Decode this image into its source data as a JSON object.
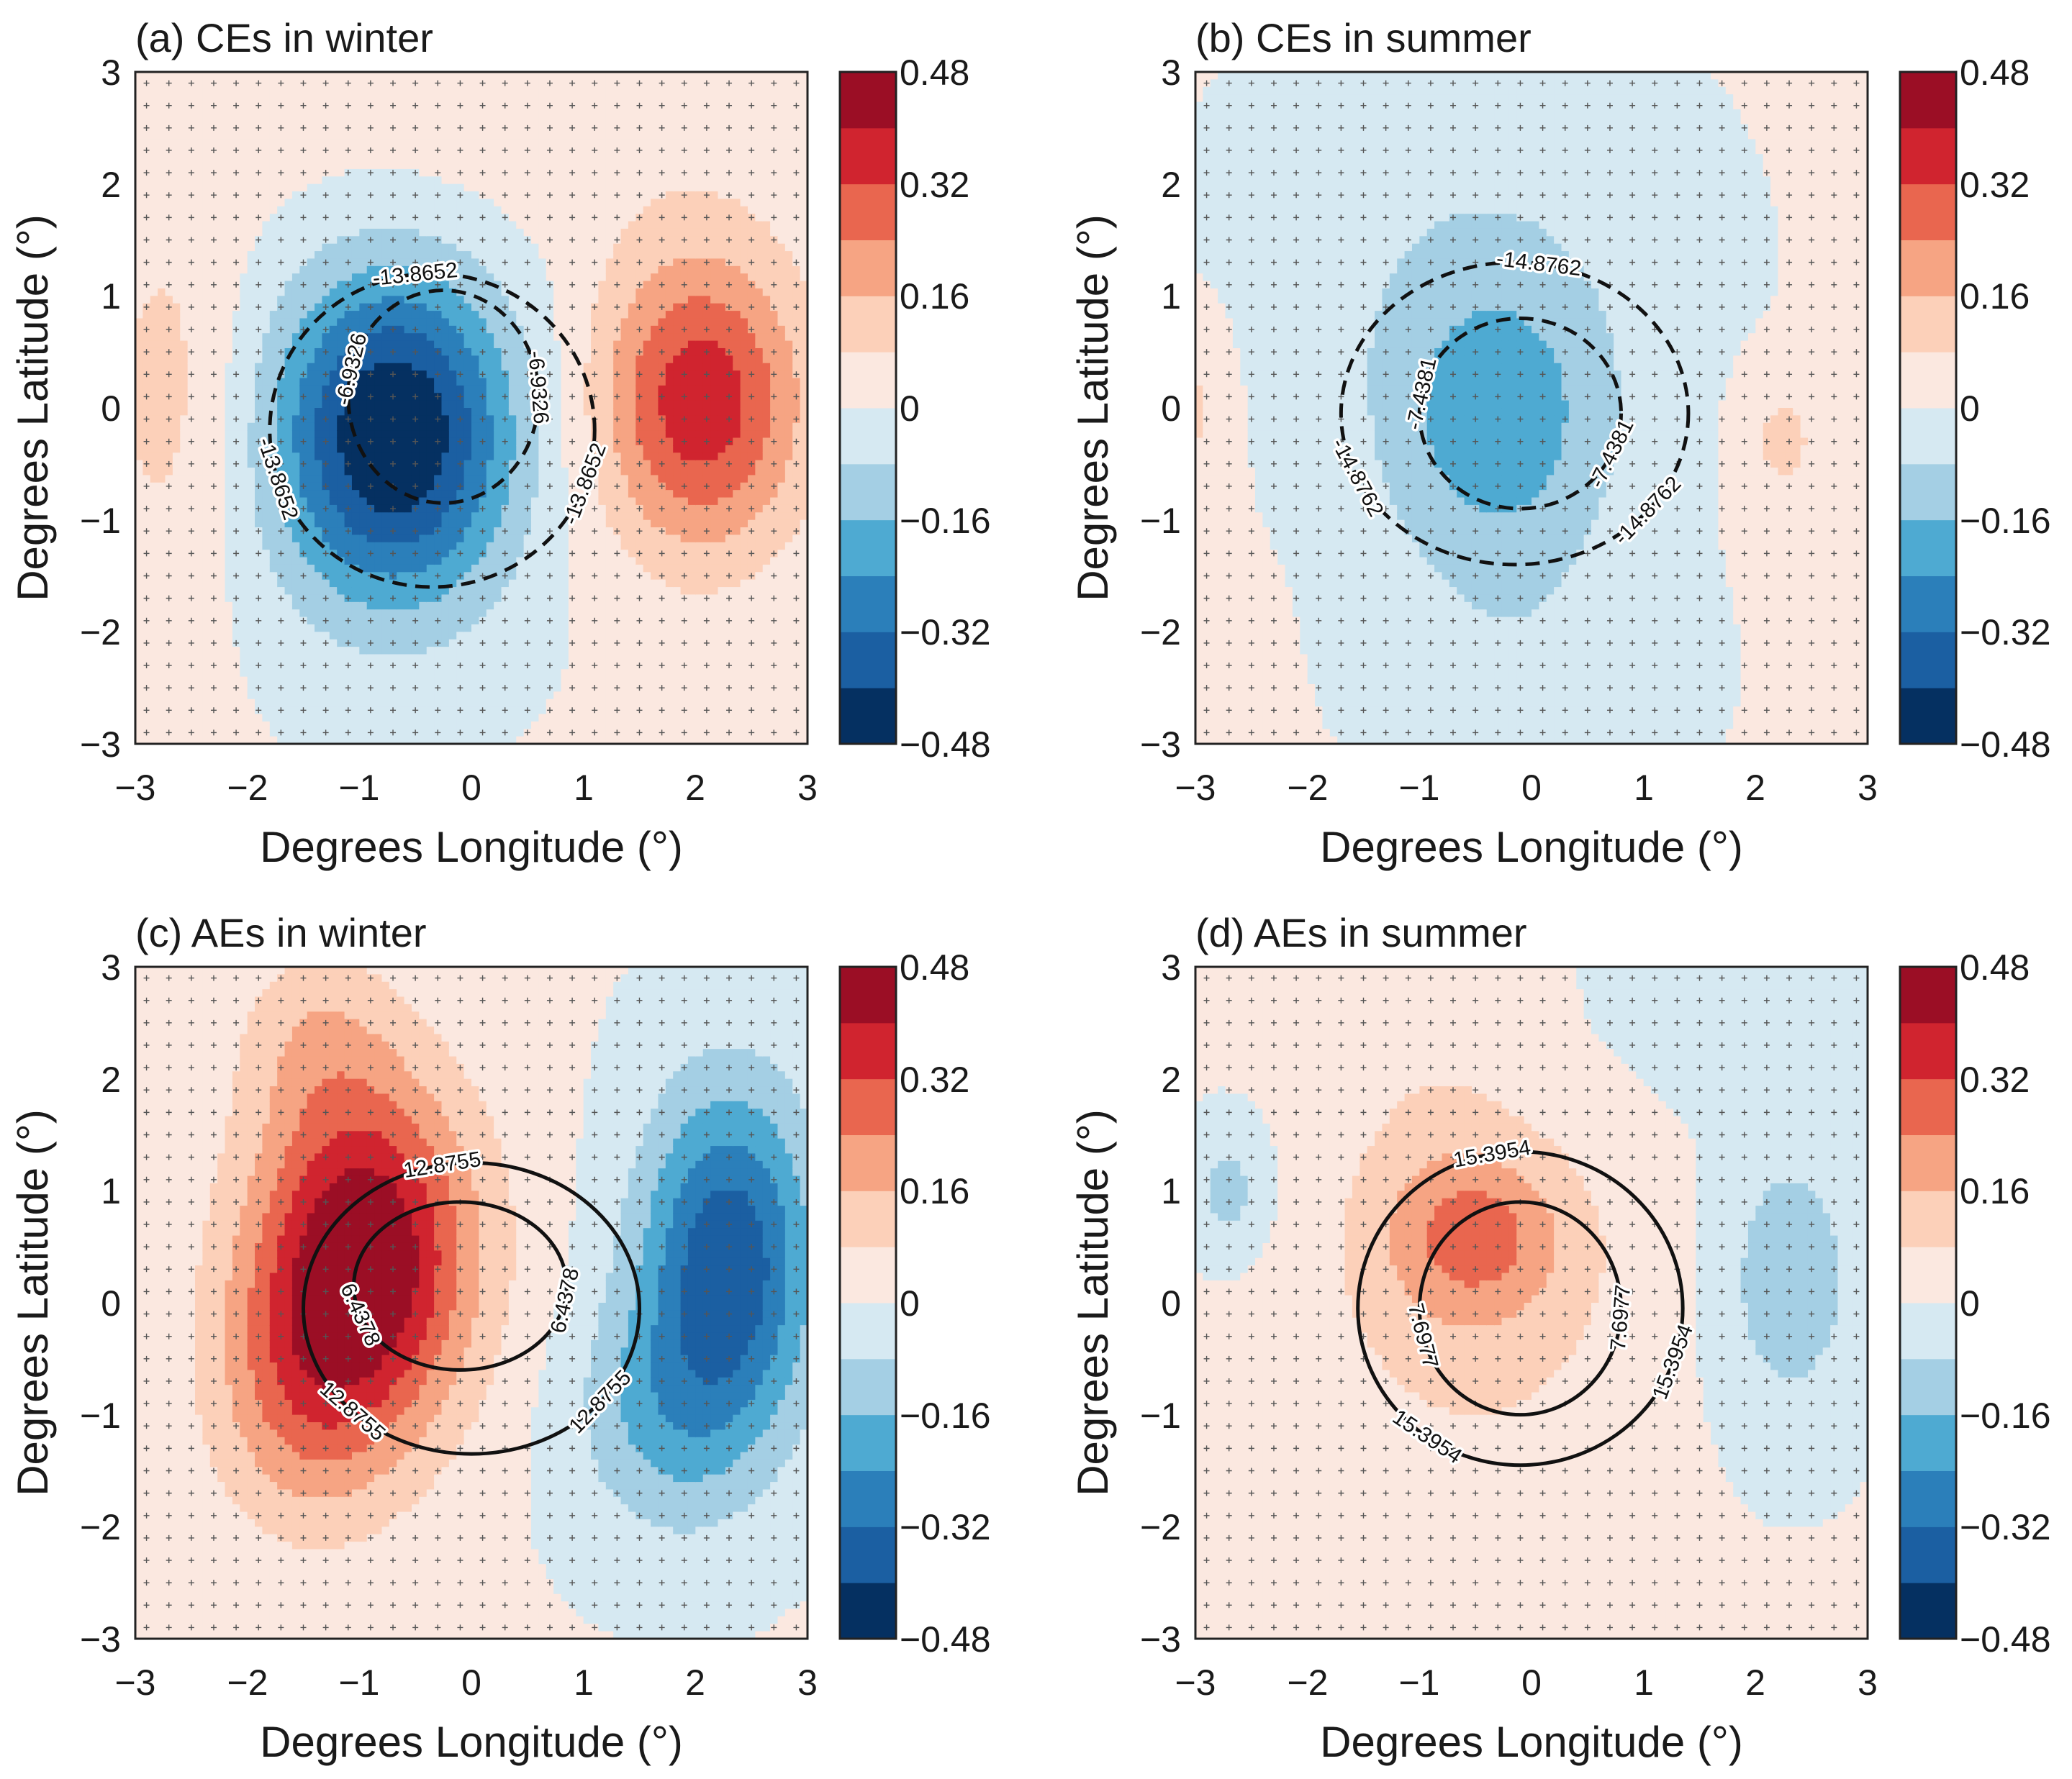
{
  "colors": {
    "levels": [
      "#053061",
      "#1b5fa2",
      "#2b7fba",
      "#4eaad2",
      "#a4cfe4",
      "#d6e9f2",
      "#fbe8e0",
      "#fcd0b9",
      "#f6a483",
      "#e9664f",
      "#d0242f",
      "#9b0e25"
    ],
    "contour": "#111111"
  },
  "chart_data": [
    {
      "id": "a",
      "type": "heatmap",
      "title": "(a) CEs in winter",
      "xlabel": "Degrees Longitude (°)",
      "ylabel": "Degrees Latitude (°)",
      "xlim": [
        -3,
        3
      ],
      "ylim": [
        -3,
        3
      ],
      "xticks": [
        "−3",
        "−2",
        "−1",
        "0",
        "1",
        "2",
        "3"
      ],
      "yticks": [
        "3",
        "2",
        "1",
        "0",
        "−1",
        "−2",
        "−3"
      ],
      "colorbar": {
        "range": [
          -0.48,
          0.48
        ],
        "step": 0.08,
        "labels": [
          "0.48",
          "0.32",
          "0.16",
          "0",
          "−0.16",
          "−0.32",
          "−0.48"
        ]
      },
      "anomaly_field": [
        {
          "x": -0.7,
          "y": -0.25,
          "sx": 0.75,
          "sy": 1.05,
          "amp": -0.5
        },
        {
          "x": 2.05,
          "y": 0.05,
          "sx": 0.65,
          "sy": 0.95,
          "amp": 0.37
        },
        {
          "x": -2.7,
          "y": 0.1,
          "sx": 0.5,
          "sy": 1.3,
          "amp": 0.1
        },
        {
          "x": 0.3,
          "y": 2.5,
          "sx": 2.2,
          "sy": 0.8,
          "amp": 0.04
        }
      ],
      "contour_style": "dashed",
      "contours": [
        {
          "center": [
            -0.35,
            -0.2
          ],
          "radius": [
            1.45,
            1.4
          ],
          "labels": [
            {
              "text": "-13.8652",
              "angle": 96
            },
            {
              "text": "-13.8652",
              "angle": 198
            },
            {
              "text": "-13.8652",
              "angle": -20
            }
          ]
        },
        {
          "center": [
            -0.25,
            0.1
          ],
          "radius": [
            0.85,
            0.95
          ],
          "labels": [
            {
              "text": "-6.9326",
              "angle": 165
            },
            {
              "text": "-6.9326",
              "angle": 5
            }
          ]
        }
      ]
    },
    {
      "id": "b",
      "type": "heatmap",
      "title": "(b) CEs in summer",
      "xlabel": "Degrees Longitude (°)",
      "ylabel": "Degrees Latitude (°)",
      "xlim": [
        -3,
        3
      ],
      "ylim": [
        -3,
        3
      ],
      "xticks": [
        "−3",
        "−2",
        "−1",
        "0",
        "1",
        "2",
        "3"
      ],
      "yticks": [
        "3",
        "2",
        "1",
        "0",
        "−1",
        "−2",
        "−3"
      ],
      "colorbar": {
        "range": [
          -0.48,
          0.48
        ],
        "step": 0.08,
        "labels": [
          "0.48",
          "0.32",
          "0.16",
          "0",
          "−0.16",
          "−0.32",
          "−0.48"
        ]
      },
      "anomaly_field": [
        {
          "x": -0.3,
          "y": -0.2,
          "sx": 0.75,
          "sy": 1.0,
          "amp": -0.2
        },
        {
          "x": -0.6,
          "y": 1.4,
          "sx": 1.3,
          "sy": 1.2,
          "amp": -0.06
        },
        {
          "x": 0.0,
          "y": -2.4,
          "sx": 0.9,
          "sy": 0.7,
          "amp": -0.05
        },
        {
          "x": 2.25,
          "y": -0.3,
          "sx": 0.25,
          "sy": 0.4,
          "amp": 0.1
        },
        {
          "x": -3.0,
          "y": 0.0,
          "sx": 0.2,
          "sy": 0.5,
          "amp": 0.09
        }
      ],
      "contour_style": "dashed",
      "contours": [
        {
          "center": [
            -0.15,
            -0.05
          ],
          "radius": [
            1.55,
            1.35
          ],
          "labels": [
            {
              "text": "-14.8762",
              "angle": 82
            },
            {
              "text": "-14.8762",
              "angle": 205
            },
            {
              "text": "-14.8762",
              "angle": -40
            }
          ]
        },
        {
          "center": [
            -0.1,
            -0.05
          ],
          "radius": [
            0.9,
            0.85
          ],
          "labels": [
            {
              "text": "-7.4381",
              "angle": 168
            },
            {
              "text": "-7.4381",
              "angle": -25
            }
          ]
        }
      ]
    },
    {
      "id": "c",
      "type": "heatmap",
      "title": "(c) AEs in winter",
      "xlabel": "Degrees Longitude (°)",
      "ylabel": "Degrees Latitude (°)",
      "xlim": [
        -3,
        3
      ],
      "ylim": [
        -3,
        3
      ],
      "xticks": [
        "−3",
        "−2",
        "−1",
        "0",
        "1",
        "2",
        "3"
      ],
      "yticks": [
        "3",
        "2",
        "1",
        "0",
        "−1",
        "−2",
        "−3"
      ],
      "colorbar": {
        "range": [
          -0.48,
          0.48
        ],
        "step": 0.08,
        "labels": [
          "0.48",
          "0.32",
          "0.16",
          "0",
          "−0.16",
          "−0.32",
          "−0.48"
        ]
      },
      "anomaly_field": [
        {
          "x": -0.95,
          "y": 0.45,
          "sx": 0.7,
          "sy": 1.1,
          "amp": 0.47
        },
        {
          "x": -1.5,
          "y": -0.8,
          "sx": 0.6,
          "sy": 0.9,
          "amp": 0.18
        },
        {
          "x": -1.4,
          "y": 2.4,
          "sx": 0.5,
          "sy": 0.6,
          "amp": 0.1
        },
        {
          "x": 2.3,
          "y": 0.4,
          "sx": 0.55,
          "sy": 1.1,
          "amp": -0.38
        },
        {
          "x": 1.7,
          "y": -1.0,
          "sx": 0.6,
          "sy": 0.8,
          "amp": -0.15
        }
      ],
      "contour_style": "solid",
      "contours": [
        {
          "center": [
            0.0,
            -0.05
          ],
          "radius": [
            1.5,
            1.3
          ],
          "labels": [
            {
              "text": "12.8755",
              "angle": 100
            },
            {
              "text": "12.8755",
              "angle": 225
            },
            {
              "text": "12.8755",
              "angle": -40
            }
          ]
        },
        {
          "center": [
            -0.1,
            0.15
          ],
          "radius": [
            0.95,
            0.75
          ],
          "labels": [
            {
              "text": "6.4378",
              "angle": 200
            },
            {
              "text": "6.4378",
              "angle": -10
            }
          ]
        }
      ]
    },
    {
      "id": "d",
      "type": "heatmap",
      "title": "(d) AEs in summer",
      "xlabel": "Degrees Longitude (°)",
      "ylabel": "Degrees Latitude (°)",
      "xlim": [
        -3,
        3
      ],
      "ylim": [
        -3,
        3
      ],
      "xticks": [
        "−3",
        "−2",
        "−1",
        "0",
        "1",
        "2",
        "3"
      ],
      "yticks": [
        "3",
        "2",
        "1",
        "0",
        "−1",
        "−2",
        "−3"
      ],
      "colorbar": {
        "range": [
          -0.48,
          0.48
        ],
        "step": 0.08,
        "labels": [
          "0.48",
          "0.32",
          "0.16",
          "0",
          "−0.16",
          "−0.32",
          "−0.48"
        ]
      },
      "anomaly_field": [
        {
          "x": -0.5,
          "y": 0.6,
          "sx": 0.55,
          "sy": 0.5,
          "amp": 0.17
        },
        {
          "x": -0.5,
          "y": 0.1,
          "sx": 1.0,
          "sy": 1.2,
          "amp": 0.11
        },
        {
          "x": -0.9,
          "y": 1.8,
          "sx": 0.6,
          "sy": 1.0,
          "amp": 0.04
        },
        {
          "x": 2.3,
          "y": 0.2,
          "sx": 0.45,
          "sy": 0.9,
          "amp": -0.14
        },
        {
          "x": -2.7,
          "y": 1.0,
          "sx": 0.25,
          "sy": 0.4,
          "amp": -0.12
        },
        {
          "x": 2.0,
          "y": 2.6,
          "sx": 1.0,
          "sy": 0.6,
          "amp": -0.05
        }
      ],
      "contour_style": "solid",
      "contours": [
        {
          "center": [
            -0.1,
            -0.05
          ],
          "radius": [
            1.45,
            1.4
          ],
          "labels": [
            {
              "text": "15.3954",
              "angle": 100
            },
            {
              "text": "15.3954",
              "angle": 235
            },
            {
              "text": "15.3954",
              "angle": -20
            }
          ]
        },
        {
          "center": [
            -0.1,
            -0.05
          ],
          "radius": [
            0.9,
            0.95
          ],
          "labels": [
            {
              "text": "7.6977",
              "angle": 195
            },
            {
              "text": "7.6977",
              "angle": -5
            }
          ]
        }
      ]
    }
  ]
}
